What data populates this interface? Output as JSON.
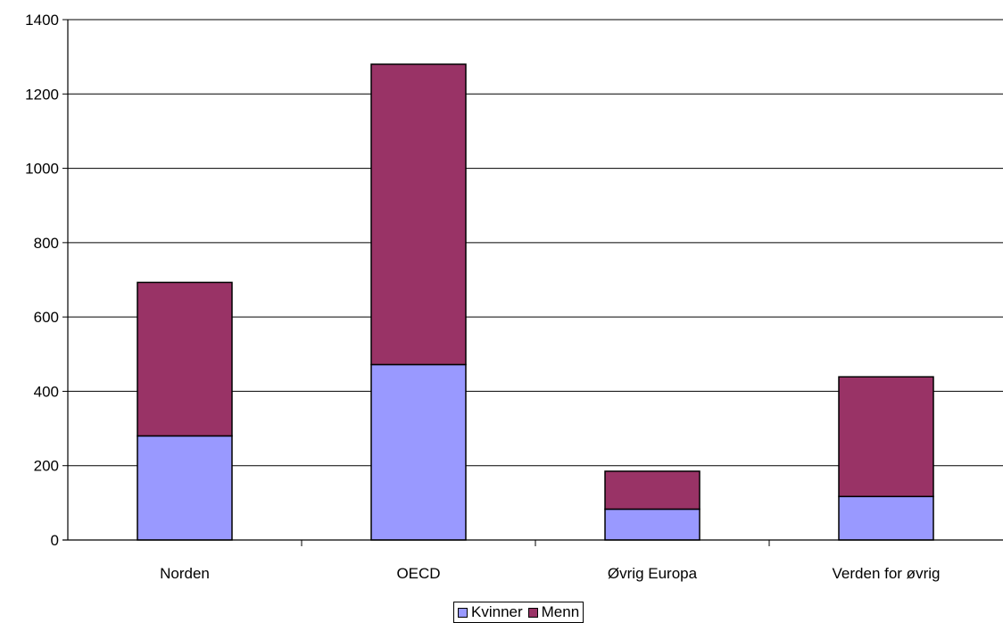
{
  "chart_data": {
    "type": "bar",
    "stacked": true,
    "categories": [
      "Norden",
      "OECD",
      "Øvrig Europa",
      "Verden for øvrig"
    ],
    "series": [
      {
        "name": "Kvinner",
        "color": "#9999ff",
        "values": [
          280,
          472,
          83,
          117
        ]
      },
      {
        "name": "Menn",
        "color": "#993366",
        "values": [
          413,
          808,
          102,
          322
        ]
      }
    ],
    "ylim": [
      0,
      1400
    ],
    "yticks": [
      0,
      200,
      400,
      600,
      800,
      1000,
      1200,
      1400
    ],
    "grid": true,
    "legend_position": "bottom",
    "title": "",
    "xlabel": "",
    "ylabel": ""
  }
}
